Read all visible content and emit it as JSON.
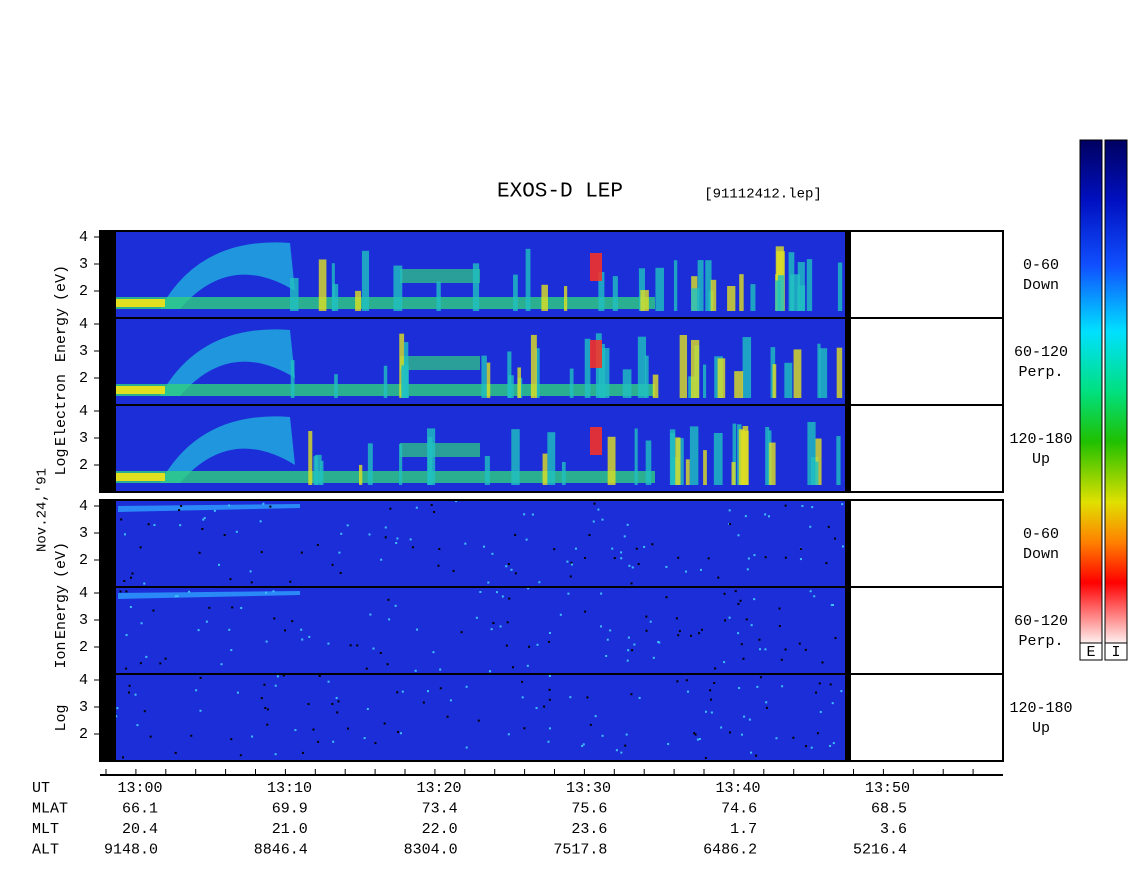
{
  "title": "EXOS-D LEP",
  "file": "[91112412.lep]",
  "date": "Nov.24,'91",
  "electron": {
    "axis_label": [
      "Log",
      "Electron",
      "Energy",
      "(eV)"
    ],
    "panels": [
      {
        "range": "0-60",
        "direction": "Down"
      },
      {
        "range": "60-120",
        "direction": "Perp."
      },
      {
        "range": "120-180",
        "direction": "Up"
      }
    ]
  },
  "ion": {
    "axis_label": [
      "Log",
      "Ion",
      "Energy",
      "(eV)"
    ],
    "panels": [
      {
        "range": "0-60",
        "direction": "Down"
      },
      {
        "range": "60-120",
        "direction": "Perp."
      },
      {
        "range": "120-180",
        "direction": "Up"
      }
    ]
  },
  "yticks": [
    "4",
    "3",
    "2"
  ],
  "colorbars": [
    "E",
    "I"
  ],
  "table": {
    "rows": [
      {
        "header": "UT",
        "cells": [
          "13:00",
          "13:10",
          "13:20",
          "13:30",
          "13:40",
          "13:50"
        ]
      },
      {
        "header": "MLAT",
        "cells": [
          "66.1",
          "69.9",
          "73.4",
          "75.6",
          "74.6",
          "68.5"
        ]
      },
      {
        "header": "MLT",
        "cells": [
          "20.4",
          "21.0",
          "22.0",
          "23.6",
          "1.7",
          "3.6"
        ]
      },
      {
        "header": "ALT",
        "cells": [
          "9148.0",
          "8846.4",
          "8304.0",
          "7517.8",
          "6486.2",
          "5216.4"
        ]
      }
    ]
  }
}
